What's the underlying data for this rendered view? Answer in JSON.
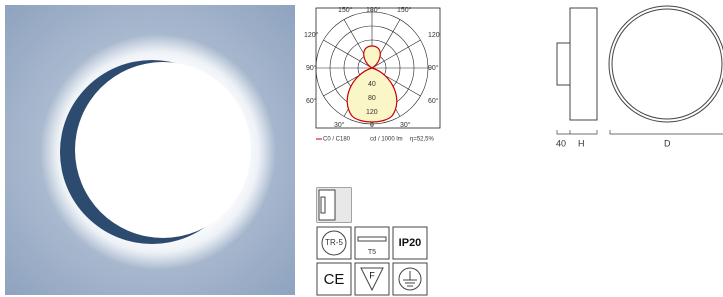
{
  "diagram": {
    "angle_labels": {
      "top_left": "150°",
      "top": "180°",
      "top_right": "150°",
      "upper_left": "120°",
      "upper_right": "120",
      "mid_left": "90°",
      "mid_right": "90°",
      "lower_left": "60°",
      "lower_right": "60°",
      "bottom_left": "30°",
      "bottom": "0",
      "bottom_right": "30°"
    },
    "radial_labels": [
      "40",
      "80",
      "120"
    ],
    "legend": {
      "curve": "C0 / C180",
      "units": "cd / 1000 lm",
      "efficiency": "η=52,5%"
    }
  },
  "icons": {
    "tr": "TR-5",
    "lamp": "T5",
    "ip": "IP20",
    "ce": "CE",
    "f": "F"
  },
  "dimensions": {
    "depth": "40",
    "height": "H",
    "diameter": "D"
  }
}
